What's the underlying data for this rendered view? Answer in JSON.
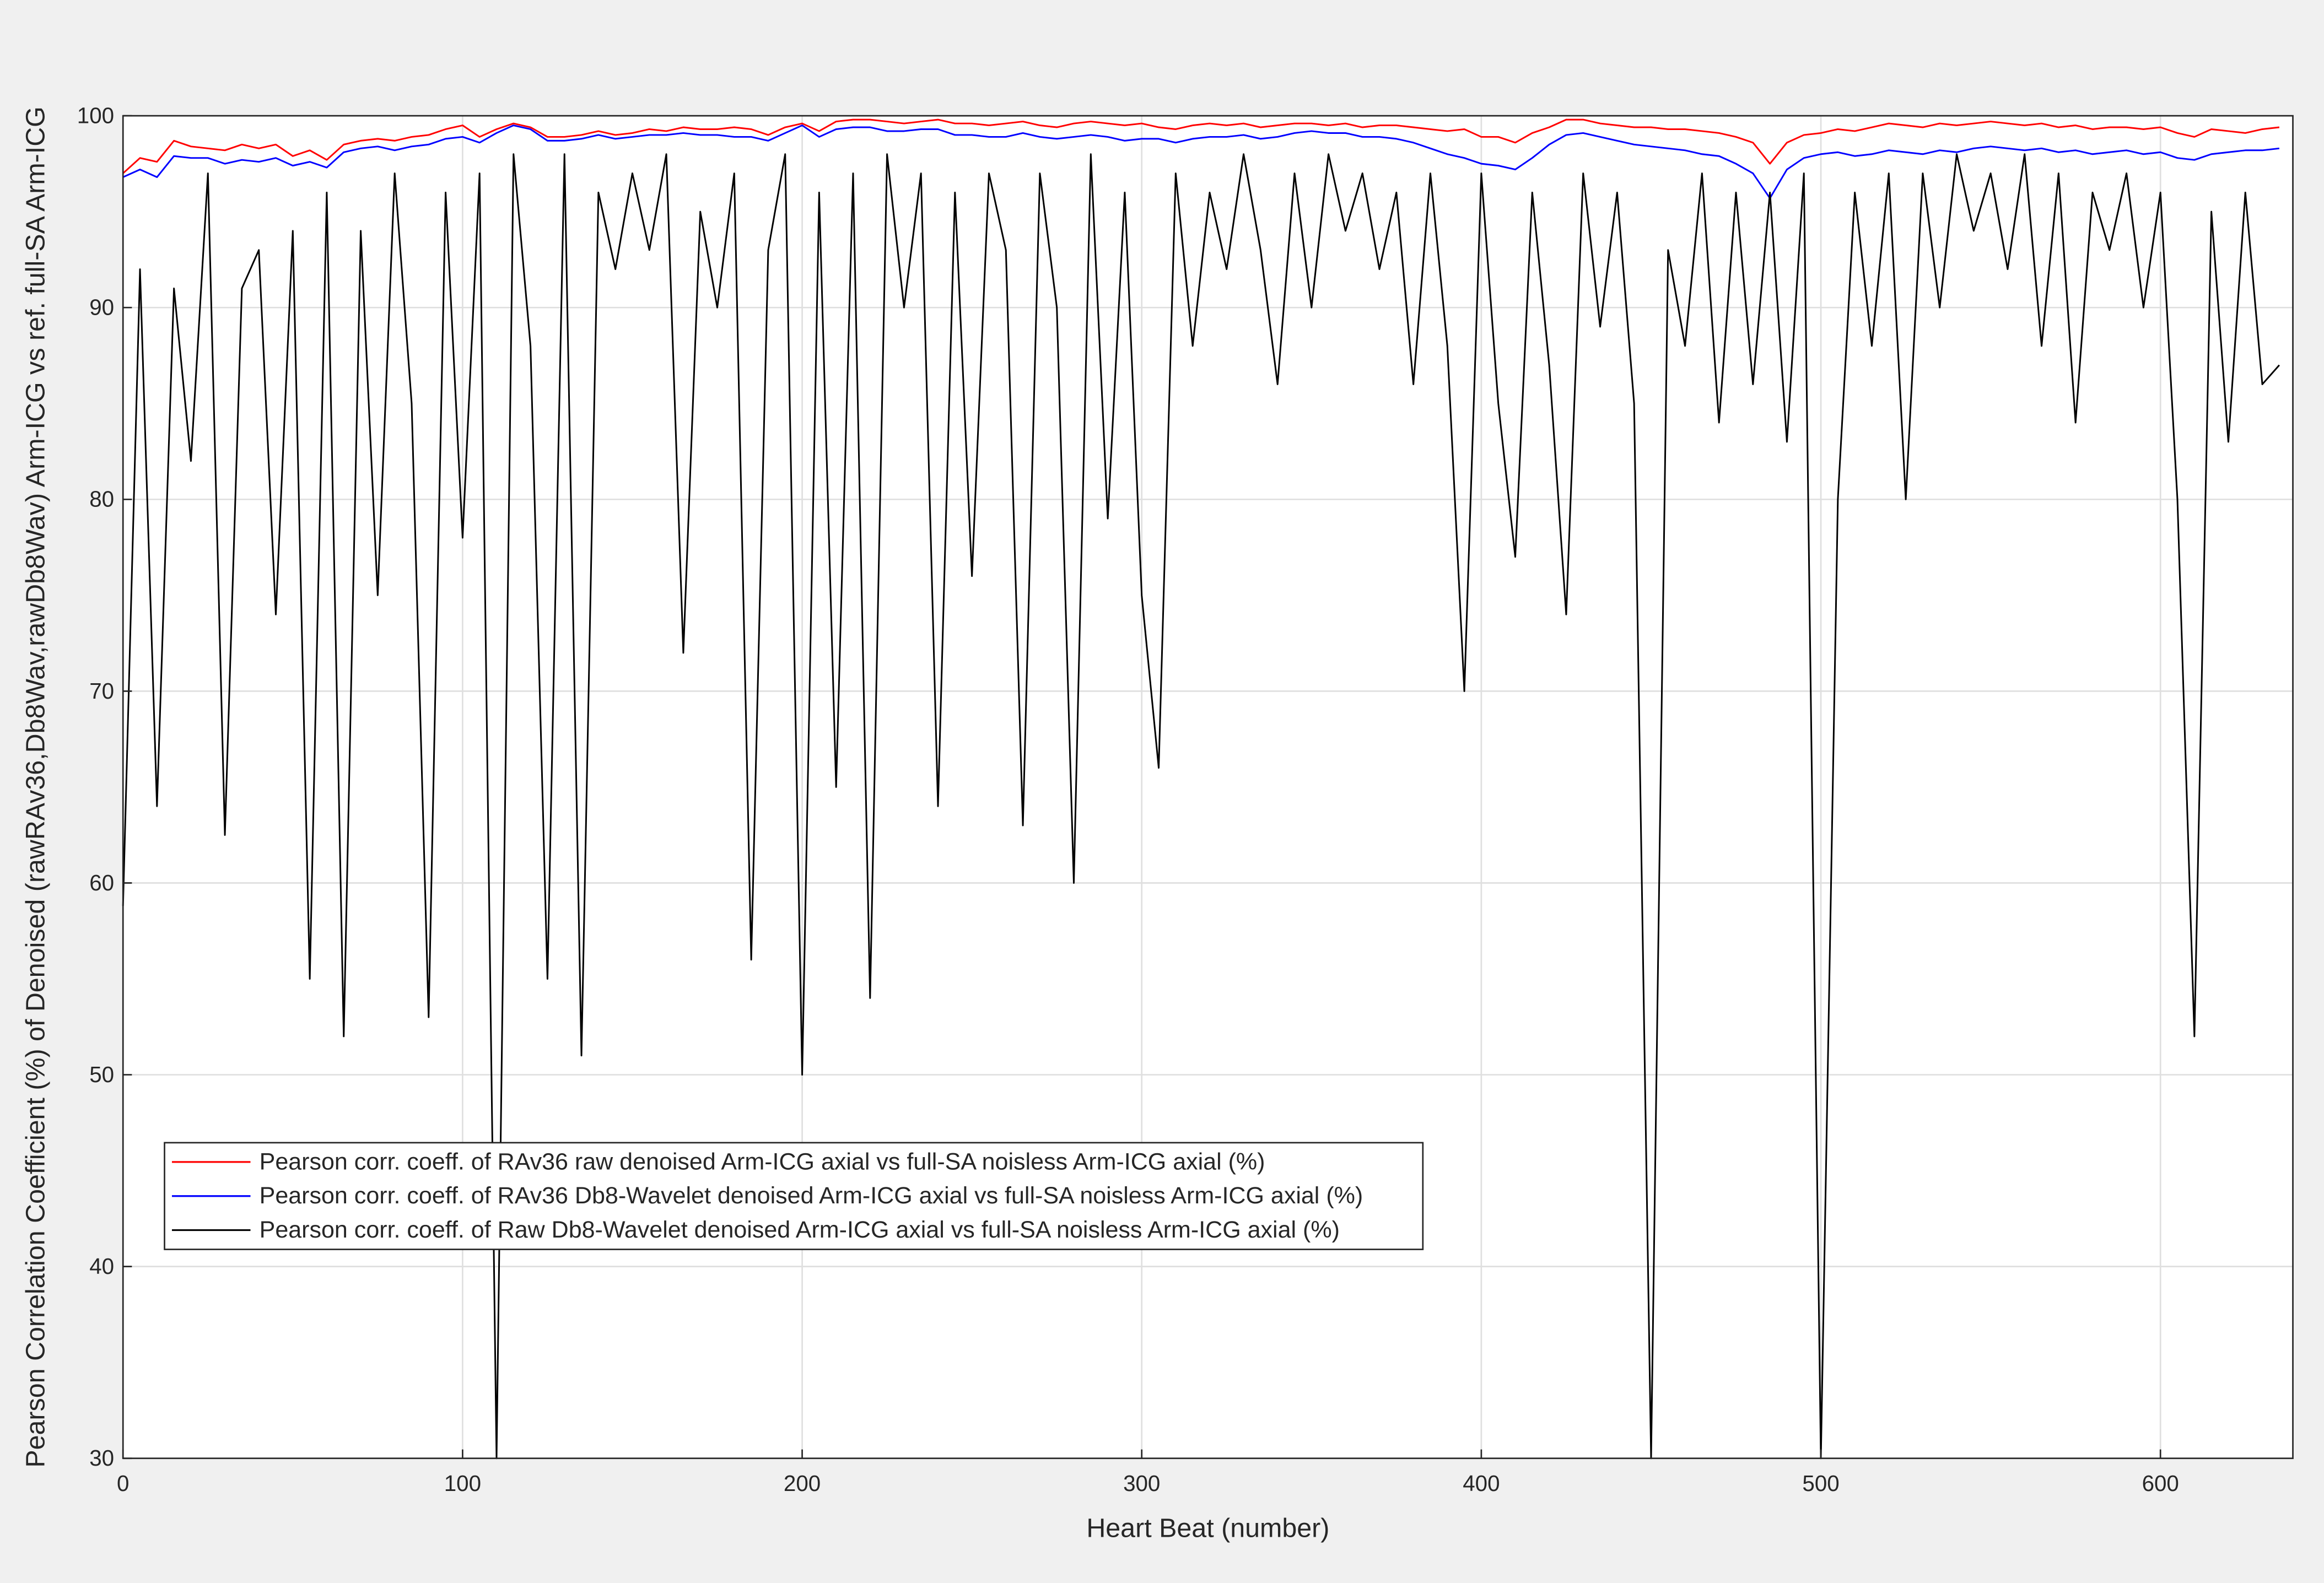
{
  "chart_data": {
    "type": "line",
    "xlabel": "Heart Beat (number)",
    "ylabel": "Pearson Correlation Coefficient (%) of Denoised (rawRAv36,Db8Wav,rawDb8Wav) Arm-ICG vs ref. full-SA Arm-ICG",
    "x": [
      0,
      5,
      10,
      15,
      20,
      25,
      30,
      35,
      40,
      45,
      50,
      55,
      60,
      65,
      70,
      75,
      80,
      85,
      90,
      95,
      100,
      105,
      110,
      115,
      120,
      125,
      130,
      135,
      140,
      145,
      150,
      155,
      160,
      165,
      170,
      175,
      180,
      185,
      190,
      195,
      200,
      205,
      210,
      215,
      220,
      225,
      230,
      235,
      240,
      245,
      250,
      255,
      260,
      265,
      270,
      275,
      280,
      285,
      290,
      295,
      300,
      305,
      310,
      315,
      320,
      325,
      330,
      335,
      340,
      345,
      350,
      355,
      360,
      365,
      370,
      375,
      380,
      385,
      390,
      395,
      400,
      405,
      410,
      415,
      420,
      425,
      430,
      435,
      440,
      445,
      450,
      455,
      460,
      465,
      470,
      475,
      480,
      485,
      490,
      495,
      500,
      505,
      510,
      515,
      520,
      525,
      530,
      535,
      540,
      545,
      550,
      555,
      560,
      565,
      570,
      575,
      580,
      585,
      590,
      595,
      600,
      605,
      610,
      615,
      620,
      625,
      630,
      635
    ],
    "series": [
      {
        "name": "Pearson corr. coeff. of RAv36 raw denoised Arm-ICG axial vs full-SA noisless Arm-ICG axial (%)",
        "color": "#ff0000",
        "values": [
          97,
          97.8,
          97.6,
          98.7,
          98.4,
          98.3,
          98.2,
          98.5,
          98.3,
          98.5,
          97.9,
          98.2,
          97.7,
          98.5,
          98.7,
          98.8,
          98.7,
          98.9,
          99,
          99.3,
          99.5,
          98.9,
          99.3,
          99.6,
          99.4,
          98.9,
          98.9,
          99,
          99.2,
          99,
          99.1,
          99.3,
          99.2,
          99.4,
          99.3,
          99.3,
          99.4,
          99.3,
          99,
          99.4,
          99.6,
          99.2,
          99.7,
          99.8,
          99.8,
          99.7,
          99.6,
          99.7,
          99.8,
          99.6,
          99.6,
          99.5,
          99.6,
          99.7,
          99.5,
          99.4,
          99.6,
          99.7,
          99.6,
          99.5,
          99.6,
          99.4,
          99.3,
          99.5,
          99.6,
          99.5,
          99.6,
          99.4,
          99.5,
          99.6,
          99.6,
          99.5,
          99.6,
          99.4,
          99.5,
          99.5,
          99.4,
          99.3,
          99.2,
          99.3,
          98.9,
          98.9,
          98.6,
          99.1,
          99.4,
          99.8,
          99.8,
          99.6,
          99.5,
          99.4,
          99.4,
          99.3,
          99.3,
          99.2,
          99.1,
          98.9,
          98.6,
          97.5,
          98.6,
          99,
          99.1,
          99.3,
          99.2,
          99.4,
          99.6,
          99.5,
          99.4,
          99.6,
          99.5,
          99.6,
          99.7,
          99.6,
          99.5,
          99.6,
          99.4,
          99.5,
          99.3,
          99.4,
          99.4,
          99.3,
          99.4,
          99.1,
          98.9,
          99.3,
          99.2,
          99.1,
          99.3,
          99.4
        ]
      },
      {
        "name": "Pearson corr. coeff. of RAv36 Db8-Wavelet denoised Arm-ICG axial vs full-SA noisless Arm-ICG axial (%)",
        "color": "#0000ff",
        "values": [
          96.8,
          97.2,
          96.8,
          97.9,
          97.8,
          97.8,
          97.5,
          97.7,
          97.6,
          97.8,
          97.4,
          97.6,
          97.3,
          98.1,
          98.3,
          98.4,
          98.2,
          98.4,
          98.5,
          98.8,
          98.9,
          98.6,
          99.1,
          99.5,
          99.3,
          98.7,
          98.7,
          98.8,
          99,
          98.8,
          98.9,
          99,
          99,
          99.1,
          99,
          99,
          98.9,
          98.9,
          98.7,
          99.1,
          99.5,
          98.9,
          99.3,
          99.4,
          99.4,
          99.2,
          99.2,
          99.3,
          99.3,
          99,
          99,
          98.9,
          98.9,
          99.1,
          98.9,
          98.8,
          98.9,
          99,
          98.9,
          98.7,
          98.8,
          98.8,
          98.6,
          98.8,
          98.9,
          98.9,
          99,
          98.8,
          98.9,
          99.1,
          99.2,
          99.1,
          99.1,
          98.9,
          98.9,
          98.8,
          98.6,
          98.3,
          98,
          97.8,
          97.5,
          97.4,
          97.2,
          97.8,
          98.5,
          99,
          99.1,
          98.9,
          98.7,
          98.5,
          98.4,
          98.3,
          98.2,
          98,
          97.9,
          97.5,
          97,
          95.7,
          97.2,
          97.8,
          98,
          98.1,
          97.9,
          98,
          98.2,
          98.1,
          98,
          98.2,
          98.1,
          98.3,
          98.4,
          98.3,
          98.2,
          98.3,
          98.1,
          98.2,
          98,
          98.1,
          98.2,
          98,
          98.1,
          97.8,
          97.7,
          98,
          98.1,
          98.2,
          98.2,
          98.3
        ]
      },
      {
        "name": "Pearson corr. coeff. of Raw Db8-Wavelet denoised Arm-ICG axial vs full-SA noisless Arm-ICG axial (%)",
        "color": "#000000",
        "values": [
          58.8,
          92,
          64,
          91,
          82,
          97,
          62.5,
          91,
          93,
          74,
          94,
          55,
          96,
          52,
          94,
          75,
          97,
          85,
          53,
          96,
          78,
          97,
          30,
          98,
          88,
          55,
          98,
          51,
          96,
          92,
          97,
          93,
          98,
          72,
          95,
          90,
          97,
          56,
          93,
          98,
          50,
          96,
          65,
          97,
          54,
          98,
          90,
          97,
          64,
          96,
          76,
          97,
          93,
          63,
          97,
          90,
          60,
          98,
          79,
          96,
          75,
          66,
          97,
          88,
          96,
          92,
          98,
          93,
          86,
          97,
          90,
          98,
          94,
          97,
          92,
          96,
          86,
          97,
          88,
          70,
          97,
          85,
          77,
          96,
          87,
          74,
          97,
          89,
          96,
          85,
          30,
          93,
          88,
          97,
          84,
          96,
          86,
          96,
          83,
          97,
          30,
          80,
          96,
          88,
          97,
          80,
          97,
          90,
          98,
          94,
          97,
          92,
          98,
          88,
          97,
          84,
          96,
          93,
          97,
          90,
          96,
          80,
          52,
          95,
          83,
          96,
          86,
          87
        ]
      }
    ],
    "xlim": [
      0,
      639
    ],
    "ylim": [
      30,
      100
    ],
    "xticks": [
      0,
      100,
      200,
      300,
      400,
      500,
      600
    ],
    "yticks": [
      30,
      40,
      50,
      60,
      70,
      80,
      90,
      100
    ],
    "grid": true,
    "legend": "lower left"
  }
}
